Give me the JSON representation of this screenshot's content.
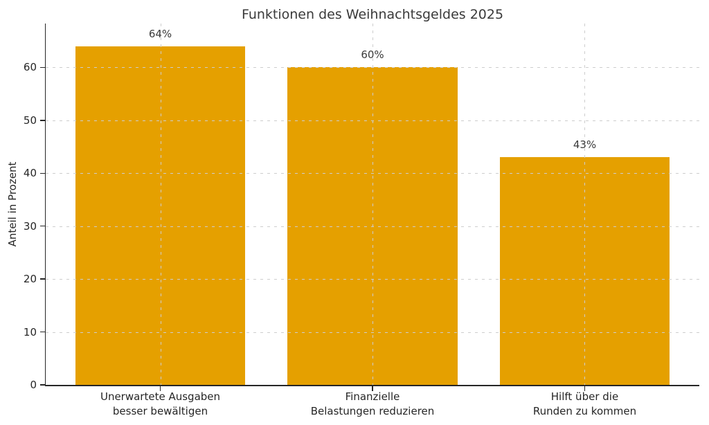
{
  "chart_data": {
    "type": "bar",
    "title": "Funktionen des Weihnachtsgeldes 2025",
    "xlabel": "",
    "ylabel": "Anteil in Prozent",
    "categories": [
      "Unerwartete Ausgaben\nbesser bewältigen",
      "Finanzielle\nBelastungen reduzieren",
      "Hilft über die\nRunden zu kommen"
    ],
    "values": [
      64,
      60,
      43
    ],
    "bar_labels": [
      "64%",
      "60%",
      "43%"
    ],
    "yticks": [
      0,
      10,
      20,
      30,
      40,
      50,
      60
    ],
    "ylim": [
      0,
      68.3
    ],
    "grid": "dashed, horizontal at each ytick and vertical at each bar center, drawn above bars",
    "legend": "none",
    "colors": {
      "bar": "#E5A000",
      "title_text": "#3A3A3A",
      "tick_text": "#262626",
      "grid_line": "#CDCDCD",
      "spine": "#262626",
      "background": "#FFFFFF"
    }
  }
}
